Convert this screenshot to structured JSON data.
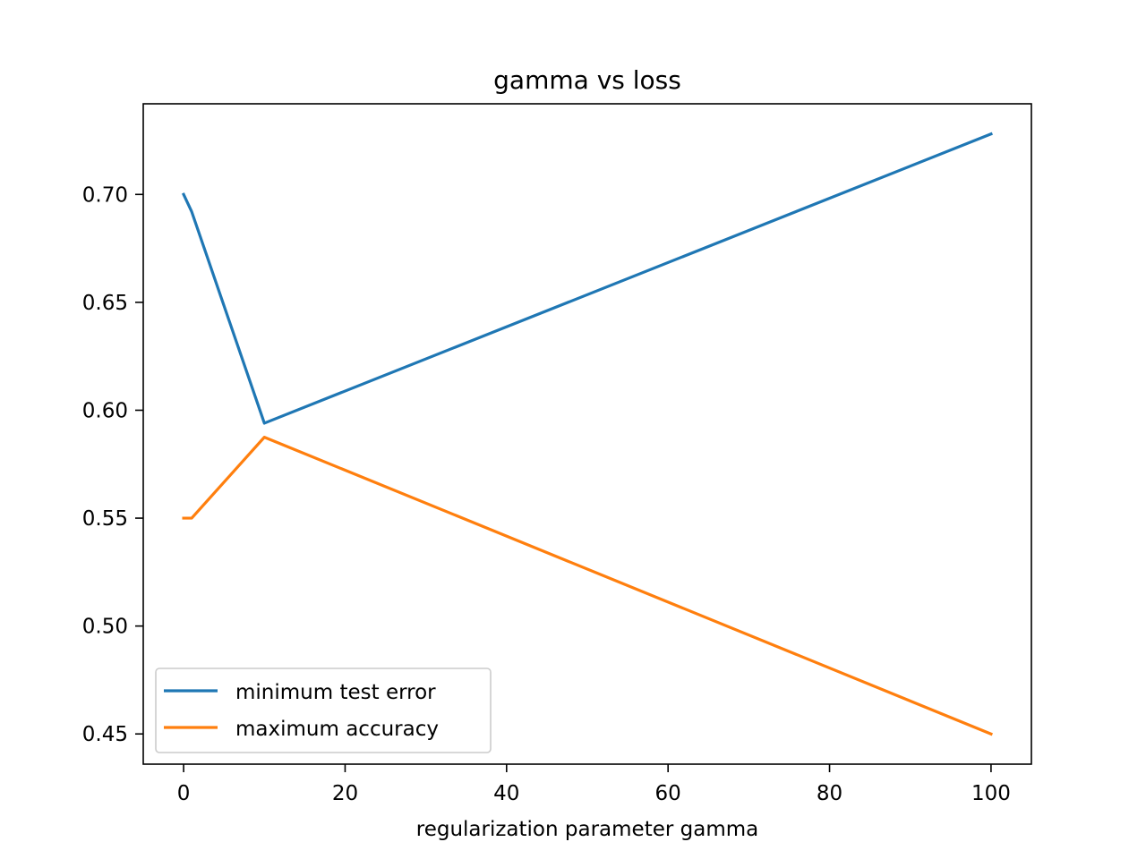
{
  "chart_data": {
    "type": "line",
    "title": "gamma vs loss",
    "xlabel": "regularization parameter gamma",
    "ylabel": "",
    "x": [
      0,
      1,
      10,
      100
    ],
    "series": [
      {
        "name": "minimum test error",
        "values": [
          0.7,
          0.692,
          0.594,
          0.728
        ],
        "color": "#1f77b4"
      },
      {
        "name": "maximum accuracy",
        "values": [
          0.55,
          0.55,
          0.5875,
          0.45
        ],
        "color": "#ff7f0e"
      }
    ],
    "xlim": [
      -5,
      105
    ],
    "ylim": [
      0.436,
      0.742
    ],
    "xticks": [
      0,
      20,
      40,
      60,
      80,
      100
    ],
    "xtick_labels": [
      "0",
      "20",
      "40",
      "60",
      "80",
      "100"
    ],
    "yticks": [
      0.45,
      0.5,
      0.55,
      0.6,
      0.65,
      0.7
    ],
    "ytick_labels": [
      "0.45",
      "0.50",
      "0.55",
      "0.60",
      "0.65",
      "0.70"
    ],
    "grid": false,
    "legend_position": "lower-left"
  }
}
